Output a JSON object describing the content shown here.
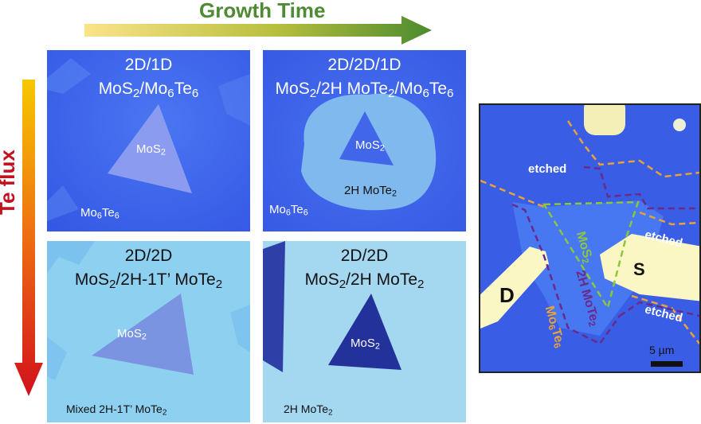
{
  "growth_time_label": "Growth Time",
  "te_flux_label": "Te flux",
  "panels": [
    {
      "title_line1": "2D/1D",
      "title_line2_parts": [
        "MoS",
        "2",
        "/Mo",
        "6",
        "Te",
        "6"
      ],
      "triangle_label": [
        "MoS",
        "2"
      ],
      "corner_label": [
        "Mo",
        "6",
        "Te",
        "6"
      ]
    },
    {
      "title_line1": "2D/2D/1D",
      "title_line2_parts": [
        "MoS",
        "2",
        "/2H MoTe",
        "2",
        "/Mo",
        "6",
        "Te",
        "6"
      ],
      "triangle_label": [
        "MoS",
        "2"
      ],
      "region_label": [
        "2H MoTe",
        "2"
      ],
      "corner_label": [
        "Mo",
        "6",
        "Te",
        "6"
      ]
    },
    {
      "title_line1": "2D/2D",
      "title_line2_parts": [
        "MoS",
        "2",
        "/2H-1T’ MoTe",
        "2"
      ],
      "triangle_label": [
        "MoS",
        "2"
      ],
      "corner_label": [
        "Mixed 2H-1T’ MoTe",
        "2"
      ]
    },
    {
      "title_line1": "2D/2D",
      "title_line2_parts": [
        "MoS",
        "2",
        "/2H MoTe",
        "2"
      ],
      "triangle_label": [
        "MoS",
        "2"
      ],
      "corner_label": [
        "2H MoTe",
        "2"
      ]
    }
  ],
  "device": {
    "etched_labels": [
      "etched",
      "etched",
      "etched"
    ],
    "drain_label": "D",
    "source_label": "S",
    "mos2_label": [
      "MoS",
      "2"
    ],
    "mote2_label": [
      "2H MoTe",
      "2"
    ],
    "mo6te6_label": [
      "Mo",
      "6",
      "Te",
      "6"
    ],
    "scale_bar_label": "5 µm"
  },
  "colors": {
    "growth_arrow_start": "#f7d86a",
    "growth_arrow_end": "#4b8b2f",
    "te_arrow_start": "#f5c400",
    "te_arrow_end": "#d0101a",
    "substrate_blue": "#3a5ee8",
    "mote2_light": "#a6d6ee",
    "dashed_orange": "#e8a23a",
    "dashed_purple": "#6a2a8a",
    "dashed_green": "#8cc63e"
  }
}
